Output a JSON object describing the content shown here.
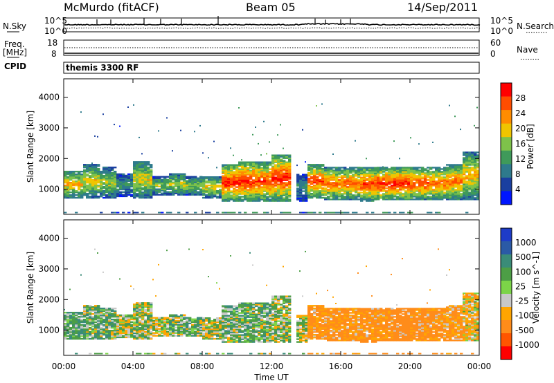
{
  "header": {
    "station": "McMurdo (fitACF)",
    "beam": "Beam 05",
    "date": "14/Sep/2011"
  },
  "top_panels": {
    "nsky_label": "N.Sky",
    "nsky_ticks": [
      "10^5",
      "10^0"
    ],
    "nsearch_label": "N.Search",
    "nsearch_ticks": [
      "10^5",
      "10^0"
    ],
    "freq_label": "Freq.",
    "freq_unit": "[MHz]",
    "freq_ticks": [
      "18",
      "8"
    ],
    "nave_label": "Nave",
    "nave_ticks": [
      "60",
      "0"
    ],
    "cpid_label": "CPID",
    "cpid_value": "themis 3300 RF"
  },
  "colors": {
    "power_scale": [
      "#0016ff",
      "#1a3fa0",
      "#2e7a8c",
      "#3f9a5a",
      "#7ec24a",
      "#f0c500",
      "#ff8c00",
      "#ff4d00",
      "#ff0000"
    ],
    "velocity_scale": [
      "#1e3cc8",
      "#2b5aa6",
      "#3a8c78",
      "#4d9e46",
      "#7cd448",
      "#c8c8c8",
      "#ffa500",
      "#ff8c1a",
      "#ff5500",
      "#ff0000"
    ]
  },
  "chart_data": [
    {
      "type": "heatmap",
      "title": "Power",
      "ylabel": "Slant Range [km]",
      "xlabel": "",
      "ylim": [
        180,
        4600
      ],
      "yticks": [
        "1000",
        "2000",
        "3000",
        "4000"
      ],
      "colorbar_label": "Power [dB]",
      "colorbar_ticks": [
        "4",
        "8",
        "12",
        "16",
        "20",
        "24",
        "28"
      ],
      "colorbar_range": [
        0,
        32
      ],
      "x": [
        "00:00",
        "01:00",
        "02:00",
        "03:00",
        "04:00",
        "05:00",
        "06:00",
        "07:00",
        "08:00",
        "09:00",
        "10:00",
        "11:00",
        "12:00",
        "13:00",
        "14:00",
        "15:00",
        "16:00",
        "17:00",
        "18:00",
        "19:00",
        "20:00",
        "21:00",
        "22:00",
        "23:00"
      ],
      "echo_band_km": [
        [
          700,
          1600
        ],
        [
          700,
          1800
        ],
        [
          700,
          1700
        ],
        [
          750,
          1500
        ],
        [
          700,
          1900
        ],
        [
          800,
          1400
        ],
        [
          800,
          1500
        ],
        [
          800,
          1400
        ],
        [
          700,
          1400
        ],
        [
          600,
          1800
        ],
        [
          600,
          1900
        ],
        [
          600,
          1900
        ],
        [
          600,
          2100
        ],
        [
          600,
          1500
        ],
        [
          700,
          1800
        ],
        [
          650,
          1700
        ],
        [
          650,
          1700
        ],
        [
          600,
          1700
        ],
        [
          650,
          1700
        ],
        [
          650,
          1700
        ],
        [
          650,
          1700
        ],
        [
          650,
          1700
        ],
        [
          650,
          1800
        ],
        [
          650,
          2200
        ]
      ],
      "peak_power_db": [
        22,
        20,
        18,
        12,
        20,
        16,
        18,
        16,
        20,
        30,
        30,
        28,
        30,
        10,
        28,
        26,
        26,
        28,
        30,
        30,
        28,
        26,
        26,
        22
      ]
    },
    {
      "type": "heatmap",
      "title": "Velocity",
      "ylabel": "Slant Range [km]",
      "xlabel": "Time UT",
      "ylim": [
        180,
        4600
      ],
      "yticks": [
        "1000",
        "2000",
        "3000",
        "4000"
      ],
      "xticks": [
        "00:00",
        "04:00",
        "08:00",
        "12:00",
        "16:00",
        "20:00",
        "00:00"
      ],
      "colorbar_label": "Velocity [m s^-1]",
      "colorbar_ticks": [
        "1000",
        "500",
        "100",
        "25",
        "-25",
        "-100",
        "-500",
        "-1000"
      ],
      "x": [
        "00:00",
        "01:00",
        "02:00",
        "03:00",
        "04:00",
        "05:00",
        "06:00",
        "07:00",
        "08:00",
        "09:00",
        "10:00",
        "11:00",
        "12:00",
        "13:00",
        "14:00",
        "15:00",
        "16:00",
        "17:00",
        "18:00",
        "19:00",
        "20:00",
        "21:00",
        "22:00",
        "23:00"
      ],
      "echo_band_km": [
        [
          700,
          1600
        ],
        [
          700,
          1800
        ],
        [
          700,
          1700
        ],
        [
          750,
          1500
        ],
        [
          700,
          1900
        ],
        [
          800,
          1400
        ],
        [
          800,
          1500
        ],
        [
          800,
          1400
        ],
        [
          700,
          1400
        ],
        [
          600,
          1800
        ],
        [
          600,
          1900
        ],
        [
          600,
          1900
        ],
        [
          600,
          2100
        ],
        [
          600,
          1500
        ],
        [
          700,
          1800
        ],
        [
          650,
          1700
        ],
        [
          650,
          1700
        ],
        [
          600,
          1700
        ],
        [
          650,
          1700
        ],
        [
          650,
          1700
        ],
        [
          650,
          1700
        ],
        [
          650,
          1700
        ],
        [
          650,
          1800
        ],
        [
          650,
          2200
        ]
      ],
      "mean_velocity_ms": [
        80,
        60,
        60,
        20,
        20,
        0,
        40,
        60,
        20,
        60,
        60,
        40,
        20,
        0,
        -120,
        -150,
        -120,
        -150,
        -150,
        -200,
        -150,
        -150,
        -100,
        -50
      ]
    }
  ]
}
